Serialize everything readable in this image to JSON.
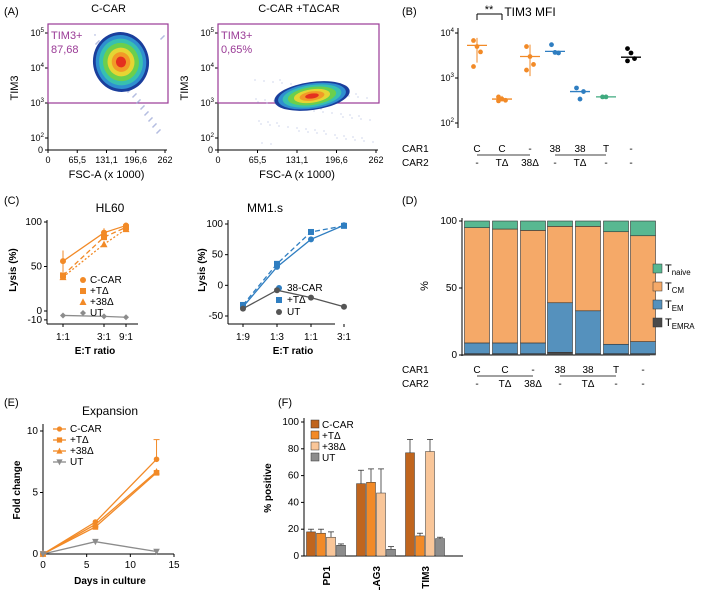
{
  "colors": {
    "orange": "#f28a27",
    "light_orange": "#f6b36f",
    "blue": "#2f7ec1",
    "light_blue": "#76aede",
    "green": "#3faa7f",
    "gray": "#8c8c8c",
    "dark_gray": "#555555",
    "purple": "#9a3a96",
    "brown": "#c0651e",
    "pale_orange": "#f9c699",
    "bar_tcm": "#f5a968",
    "bar_tem": "#5591bd",
    "bar_teff": "#4a4a4a",
    "bar_naive": "#58b891"
  },
  "chart_data": [
    {
      "id": "A",
      "type": "scatter",
      "panel_label": "(A)",
      "subplots": [
        {
          "title": "C-CAR",
          "gate_label": "TIM3+",
          "gate_value": "87,68",
          "xlabel": "FSC-A (x 1000)",
          "ylabel": "TIM3",
          "x_ticks": [
            "0",
            "65,5",
            "131,1",
            "196,6",
            "262"
          ],
          "y_ticks": [
            "10^5",
            "10^4",
            "10^3",
            "10^2",
            "0"
          ],
          "y_prefix": "10",
          "y_exps": [
            "5",
            "4",
            "3",
            "2"
          ],
          "y_zero": "0",
          "gate_y": 1000
        },
        {
          "title": "C-CAR +TΔCAR",
          "gate_label": "TIM3+",
          "gate_value": "0,65%",
          "xlabel": "FSC-A (x 1000)",
          "ylabel": "TIM3",
          "x_ticks": [
            "0",
            "65,5",
            "131,1",
            "196,6",
            "262"
          ],
          "y_ticks": [
            "10^5",
            "10^4",
            "10^3",
            "10^2",
            "0"
          ],
          "y_prefix": "10",
          "y_exps": [
            "5",
            "4",
            "3",
            "2"
          ],
          "y_zero": "0",
          "gate_y": 1000
        }
      ]
    },
    {
      "id": "B",
      "type": "scatter",
      "panel_label": "(B)",
      "title": "TIM3 MFI",
      "y_scale": "log",
      "ylim": [
        200,
        10000
      ],
      "y_ticks": [
        "10^4",
        "10^3",
        "10^2"
      ],
      "y_prefix": "10",
      "y_exps": [
        "4",
        "3",
        "2"
      ],
      "significance": "**",
      "row_labels": [
        "CAR1",
        "CAR2"
      ],
      "groups": [
        {
          "car1": "C",
          "car2": "-",
          "color": "orange",
          "points": [
            6800,
            5000,
            3800,
            1800
          ],
          "mean": 5300,
          "sd_low": 2200,
          "sd_high": 7800
        },
        {
          "car1": "C",
          "car2": "TΔ",
          "color": "orange",
          "points": [
            380,
            340,
            320,
            310
          ],
          "mean": 340,
          "sd_low": 300,
          "sd_high": 400
        },
        {
          "car1": "-",
          "car2": "38Δ",
          "color": "orange",
          "points": [
            5000,
            3000,
            2000,
            1500
          ],
          "mean": 3000,
          "sd_low": 1100,
          "sd_high": 5500
        },
        {
          "car1": "38",
          "car2": "-",
          "color": "blue",
          "points": [
            5500,
            3700,
            3600
          ],
          "mean": 3900,
          "sd_low": 3900,
          "sd_high": 3900
        },
        {
          "car1": "38",
          "car2": "TΔ",
          "color": "blue",
          "points": [
            600,
            340,
            500
          ],
          "mean": 500,
          "sd_low": 500,
          "sd_high": 500
        },
        {
          "car1": "T",
          "car2": "-",
          "color": "green",
          "points": [
            380,
            380
          ],
          "mean": 380,
          "sd_low": 380,
          "sd_high": 380
        },
        {
          "car1": "-",
          "car2": "-",
          "color": "black",
          "points": [
            4500,
            3600,
            2700,
            2400
          ],
          "mean": 2900,
          "sd_low": 2900,
          "sd_high": 2900
        }
      ]
    },
    {
      "id": "C1",
      "type": "line",
      "panel_label": "(C)",
      "title": "HL60",
      "xlabel": "E:T ratio",
      "ylabel": "Lysis (%)",
      "categories": [
        "1:1",
        "3:1",
        "9:1"
      ],
      "ylim": [
        -10,
        100
      ],
      "y_ticks": [
        "100",
        "50",
        "0",
        "-10"
      ],
      "series": [
        {
          "name": "C-CAR",
          "color": "orange",
          "marker": "circle",
          "dash": "solid",
          "values": [
            56,
            88,
            96
          ]
        },
        {
          "name": "+TΔ",
          "color": "orange",
          "marker": "square",
          "dash": "dash",
          "values": [
            40,
            83,
            94
          ]
        },
        {
          "name": "+38Δ",
          "color": "orange",
          "marker": "triangle",
          "dash": "dot",
          "values": [
            38,
            75,
            92
          ]
        },
        {
          "name": "UT",
          "color": "gray",
          "marker": "diamond",
          "dash": "solid",
          "values": [
            -5,
            -6,
            -7
          ]
        }
      ]
    },
    {
      "id": "C2",
      "type": "line",
      "title": "MM1.s",
      "xlabel": "E:T ratio",
      "ylabel": "Lysis (%)",
      "categories": [
        "1:9",
        "1:3",
        "1:1",
        "3:1"
      ],
      "ylim": [
        -50,
        100
      ],
      "y_ticks": [
        "100",
        "50",
        "0",
        "-50"
      ],
      "series": [
        {
          "name": "38-CAR",
          "color": "blue",
          "marker": "circle",
          "dash": "solid",
          "values": [
            -35,
            30,
            75,
            98
          ]
        },
        {
          "name": "+TΔ",
          "color": "blue",
          "marker": "square",
          "dash": "dash",
          "values": [
            -32,
            35,
            87,
            97
          ]
        },
        {
          "name": "UT",
          "color": "dark_gray",
          "marker": "circle",
          "dash": "solid",
          "values": [
            -38,
            -8,
            -20,
            -35
          ]
        }
      ]
    },
    {
      "id": "D",
      "type": "bar",
      "panel_label": "(D)",
      "stacked": true,
      "ylabel": "%",
      "ylim": [
        0,
        100
      ],
      "y_ticks": [
        "100",
        "50",
        "0"
      ],
      "row_labels": [
        "CAR1",
        "CAR2"
      ],
      "categories": [
        {
          "car1": "C",
          "car2": "-"
        },
        {
          "car1": "C",
          "car2": "TΔ"
        },
        {
          "car1": "-",
          "car2": "38Δ"
        },
        {
          "car1": "38",
          "car2": "-"
        },
        {
          "car1": "38",
          "car2": "TΔ"
        },
        {
          "car1": "T",
          "car2": "-"
        },
        {
          "car1": "-",
          "car2": "-"
        }
      ],
      "series": [
        {
          "name": "EMRA",
          "label_base": "T",
          "label_sub": "EMRA",
          "color": "bar_teff",
          "values": [
            1,
            1,
            1,
            2,
            1,
            1,
            1
          ]
        },
        {
          "name": "EM",
          "label_base": "T",
          "label_sub": "EM",
          "color": "bar_tem",
          "values": [
            8,
            8,
            8,
            37,
            32,
            7,
            9
          ]
        },
        {
          "name": "CM",
          "label_base": "T",
          "label_sub": "CM",
          "color": "bar_tcm",
          "values": [
            86,
            85,
            84,
            57,
            63,
            84,
            79
          ]
        },
        {
          "name": "naive",
          "label_base": "T",
          "label_sub": "naive",
          "color": "bar_naive",
          "values": [
            5,
            6,
            7,
            4,
            4,
            8,
            11
          ]
        }
      ]
    },
    {
      "id": "E",
      "type": "line",
      "panel_label": "(E)",
      "title": "Expansion",
      "xlabel": "Days in culture",
      "ylabel": "Fold change",
      "x": [
        0,
        6,
        13
      ],
      "xlim": [
        0,
        15
      ],
      "x_ticks": [
        "0",
        "5",
        "10",
        "15"
      ],
      "ylim": [
        0,
        10
      ],
      "y_ticks": [
        "0",
        "5",
        "10"
      ],
      "series": [
        {
          "name": "C-CAR",
          "color": "orange",
          "marker": "circle",
          "values": [
            0,
            2.6,
            7.7
          ]
        },
        {
          "name": "+TΔ",
          "color": "orange",
          "marker": "square",
          "values": [
            0,
            2.2,
            6.6
          ]
        },
        {
          "name": "+38Δ",
          "color": "orange",
          "marker": "triangle",
          "values": [
            0,
            2.4,
            6.7
          ]
        },
        {
          "name": "UT",
          "color": "gray",
          "marker": "triangle-down",
          "values": [
            0,
            1.0,
            0.2
          ]
        }
      ]
    },
    {
      "id": "F",
      "type": "bar",
      "panel_label": "(F)",
      "ylabel": "% positive",
      "categories": [
        "PD1",
        "LAG3",
        "TIM3"
      ],
      "ylim": [
        0,
        100
      ],
      "y_ticks": [
        "0",
        "20",
        "40",
        "60",
        "80",
        "100"
      ],
      "series": [
        {
          "name": "C-CAR",
          "color": "brown",
          "values": [
            18,
            54,
            77
          ],
          "err": [
            2,
            10,
            10
          ]
        },
        {
          "name": "+TΔ",
          "color": "orange",
          "values": [
            17,
            55,
            15
          ],
          "err": [
            3,
            10,
            2
          ]
        },
        {
          "name": "+38Δ",
          "color": "pale_orange",
          "values": [
            14,
            47,
            78
          ],
          "err": [
            4,
            18,
            9
          ]
        },
        {
          "name": "UT",
          "color": "gray",
          "values": [
            8,
            5,
            13
          ],
          "err": [
            1,
            2,
            1
          ]
        }
      ]
    }
  ]
}
